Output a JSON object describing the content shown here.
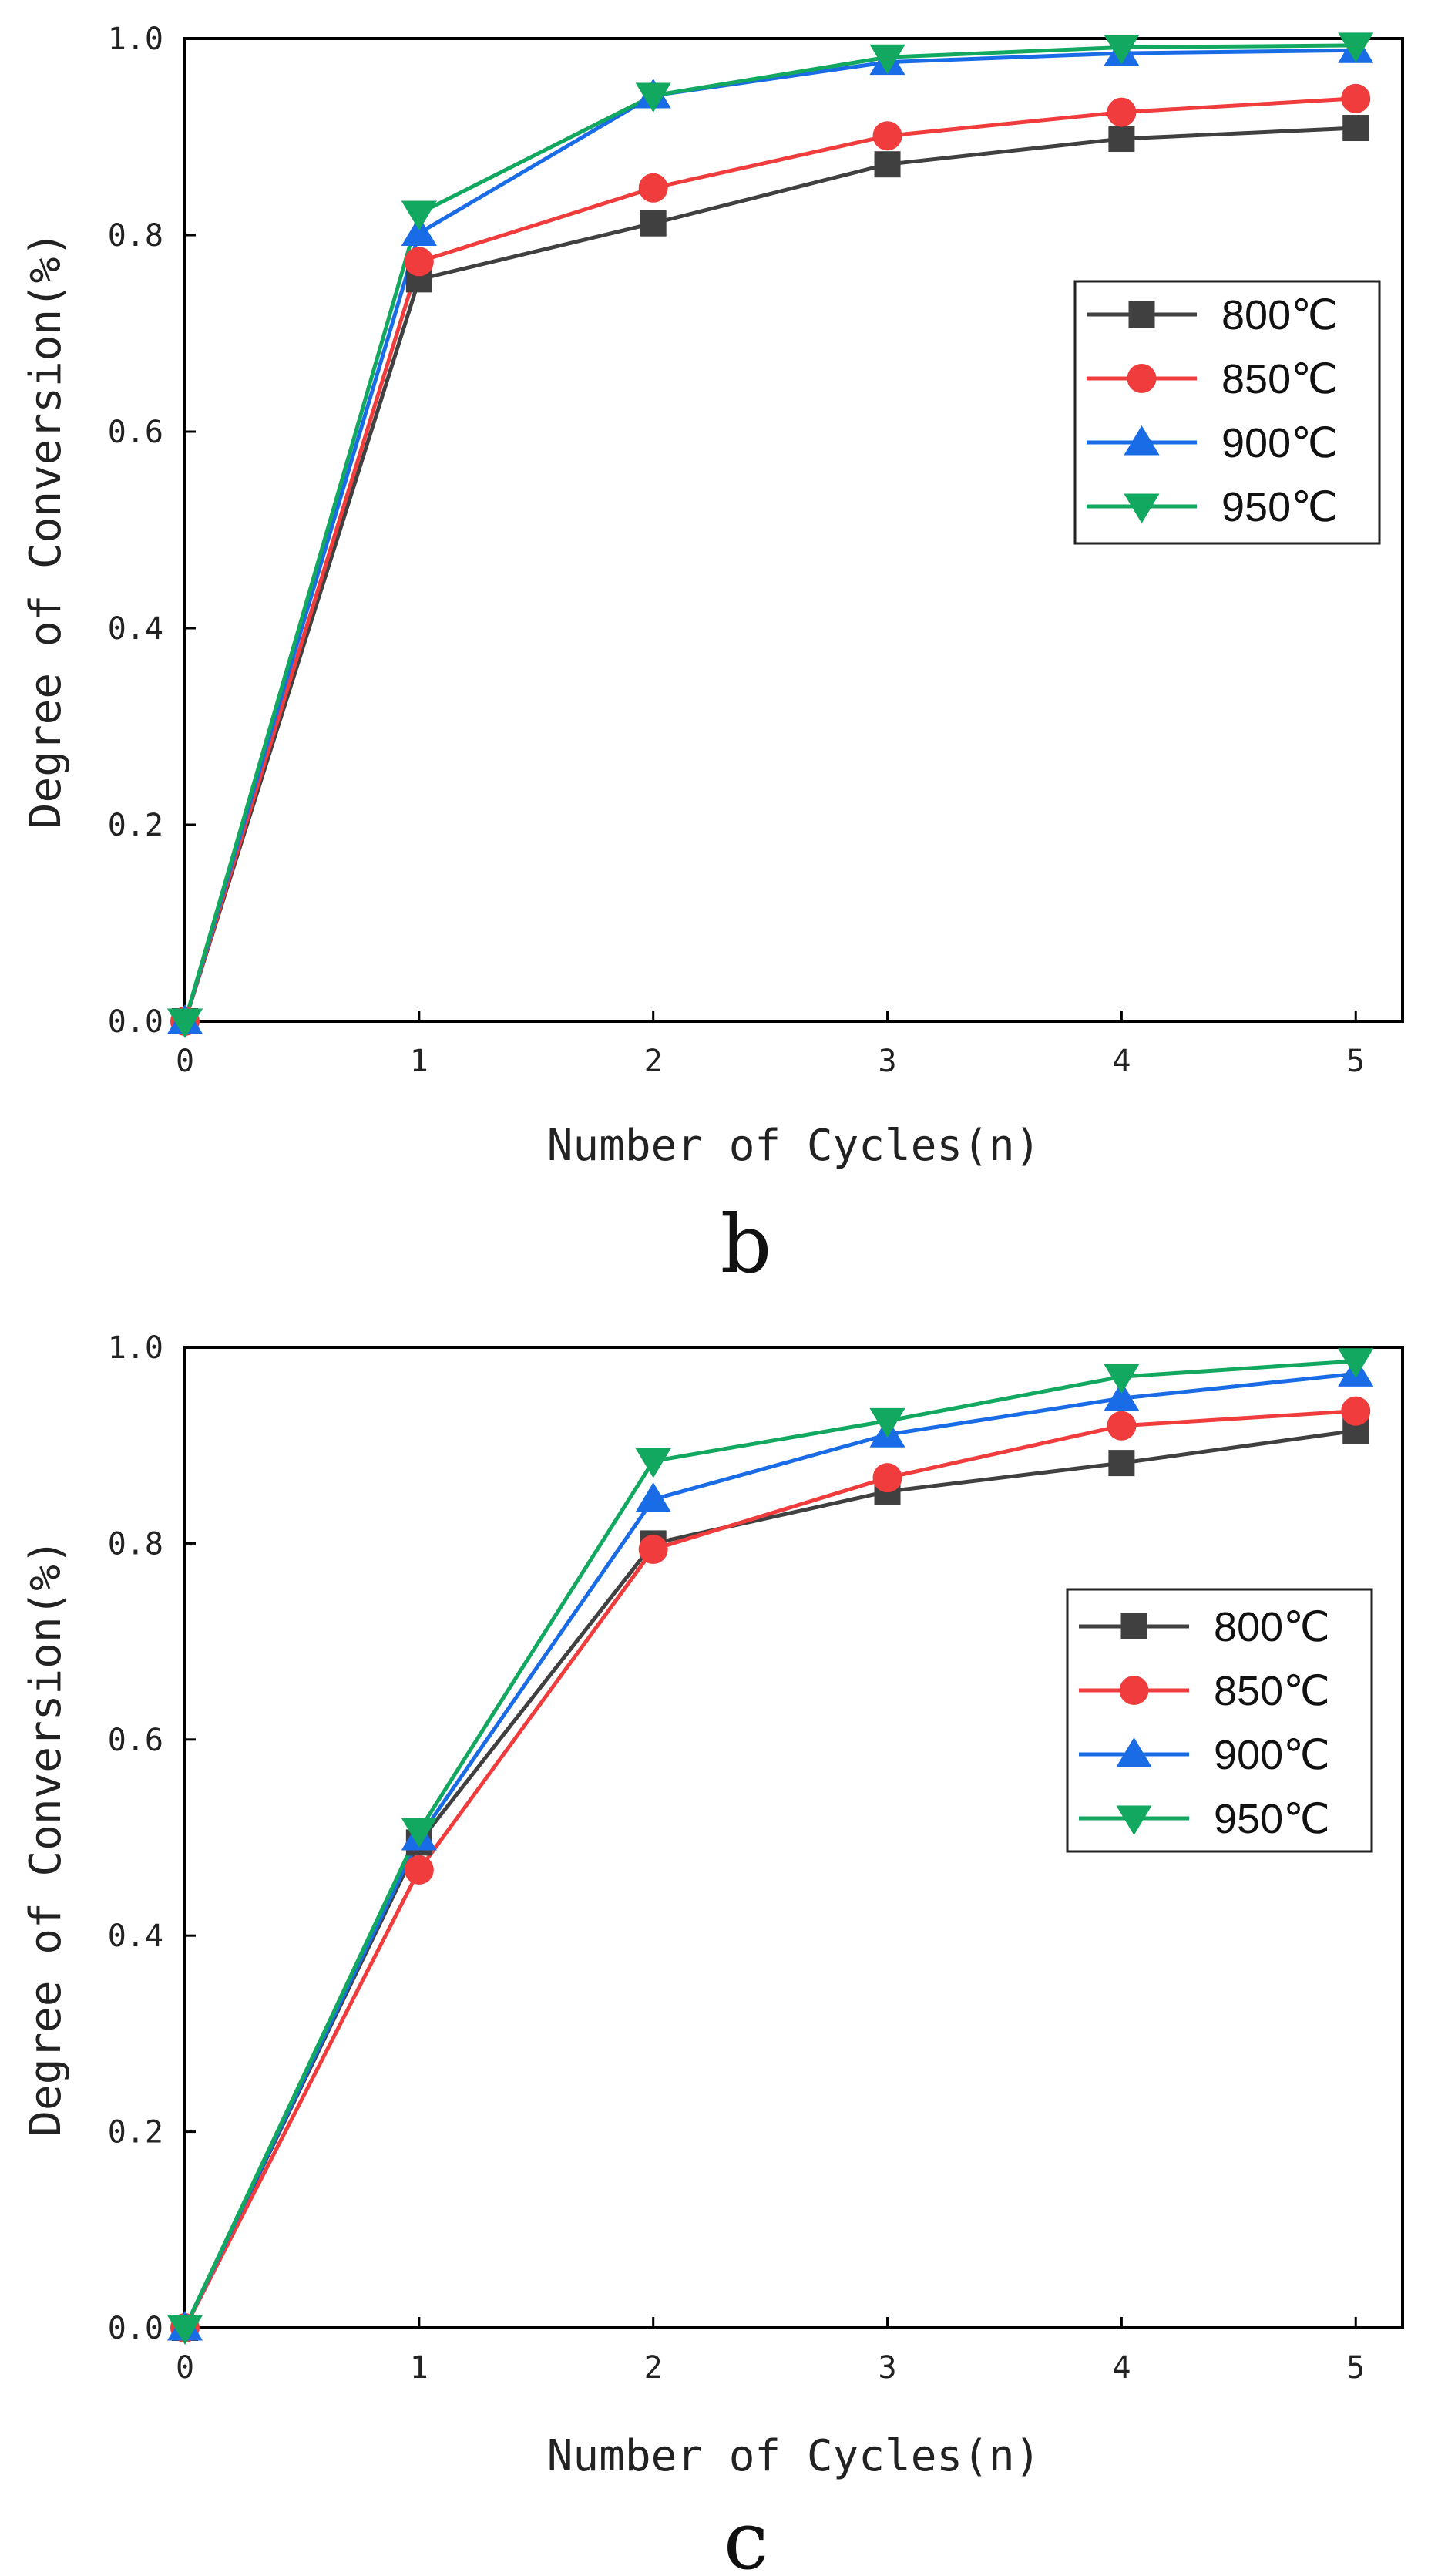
{
  "colors": {
    "s800": "#404040",
    "s850": "#f03c3c",
    "s900": "#1a6ce6",
    "s950": "#12a860",
    "axis": "#000000"
  },
  "chart_data": [
    {
      "type": "line",
      "panel_label": "b",
      "xlabel": "Number of Cycles(n)",
      "ylabel": "Degree of Conversion(%)",
      "xlim": [
        0,
        5.2
      ],
      "ylim": [
        0,
        1.0
      ],
      "x": [
        0,
        1,
        2,
        3,
        4,
        5
      ],
      "xticks": [
        "0",
        "1",
        "2",
        "3",
        "4",
        "5"
      ],
      "yticks": [
        "0.0",
        "0.2",
        "0.4",
        "0.6",
        "0.8",
        "1.0"
      ],
      "legend_position": "right-upper",
      "series": [
        {
          "name": "800℃",
          "marker": "square",
          "color_key": "s800",
          "values": [
            0.0,
            0.755,
            0.812,
            0.872,
            0.898,
            0.909
          ]
        },
        {
          "name": "850℃",
          "marker": "circle",
          "color_key": "s850",
          "values": [
            0.0,
            0.773,
            0.848,
            0.901,
            0.925,
            0.939
          ]
        },
        {
          "name": "900℃",
          "marker": "triangle-up",
          "color_key": "s900",
          "values": [
            0.0,
            0.802,
            0.942,
            0.976,
            0.985,
            0.988
          ]
        },
        {
          "name": "950℃",
          "marker": "triangle-down",
          "color_key": "s950",
          "values": [
            0.0,
            0.822,
            0.942,
            0.981,
            0.991,
            0.993
          ]
        }
      ]
    },
    {
      "type": "line",
      "panel_label": "c",
      "xlabel": "Number of Cycles(n)",
      "ylabel": "Degree of Conversion(%)",
      "xlim": [
        0,
        5.2
      ],
      "ylim": [
        0,
        1.0
      ],
      "x": [
        0,
        1,
        2,
        3,
        4,
        5
      ],
      "xticks": [
        "0",
        "1",
        "2",
        "3",
        "4",
        "5"
      ],
      "yticks": [
        "0.0",
        "0.2",
        "0.4",
        "0.6",
        "0.8",
        "1.0"
      ],
      "legend_position": "right-middle",
      "series": [
        {
          "name": "800℃",
          "marker": "square",
          "color_key": "s800",
          "values": [
            0.0,
            0.495,
            0.8,
            0.853,
            0.882,
            0.915
          ]
        },
        {
          "name": "850℃",
          "marker": "circle",
          "color_key": "s850",
          "values": [
            0.0,
            0.467,
            0.794,
            0.867,
            0.92,
            0.935
          ]
        },
        {
          "name": "900℃",
          "marker": "triangle-up",
          "color_key": "s900",
          "values": [
            0.0,
            0.5,
            0.845,
            0.911,
            0.948,
            0.973
          ]
        },
        {
          "name": "950℃",
          "marker": "triangle-down",
          "color_key": "s950",
          "values": [
            0.0,
            0.507,
            0.884,
            0.925,
            0.97,
            0.986
          ]
        }
      ]
    }
  ]
}
